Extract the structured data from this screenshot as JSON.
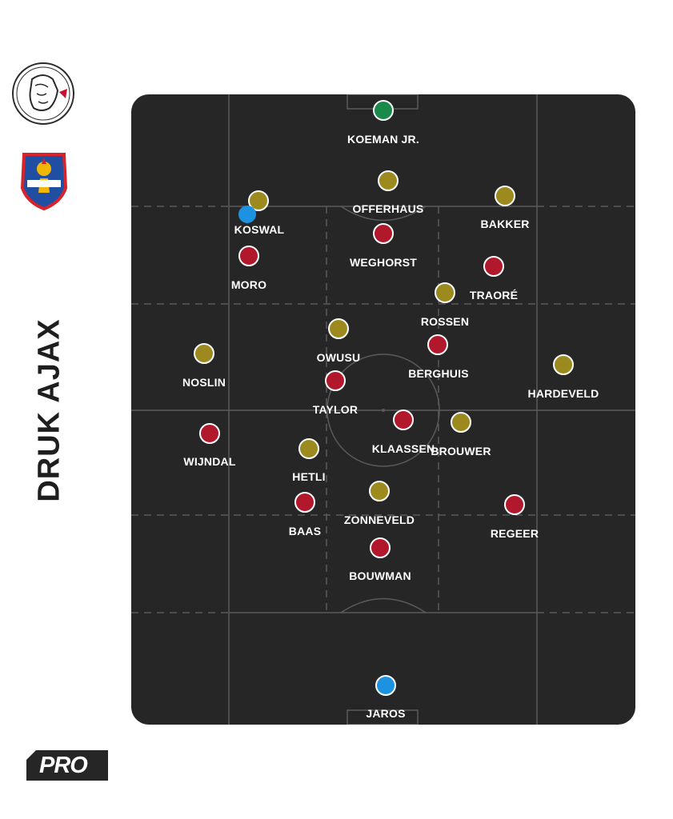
{
  "title": "DRUK AJAX",
  "badge": "PRO",
  "colors": {
    "pitch": "#262626",
    "lines": "#5a5a5a",
    "ajax": "#b2182b",
    "telstar": "#9d8a1e",
    "goalkeeper": "#1a8a4a",
    "highlight": "#1c92e0"
  },
  "logos": {
    "team_a": "ajax-logo",
    "team_b": "telstar-logo"
  },
  "players": [
    {
      "name": "KOEMAN JR.",
      "team": "goalkeeper"
    },
    {
      "name": "OFFERHAUS",
      "team": "telstar"
    },
    {
      "name": "BAKKER",
      "team": "telstar"
    },
    {
      "name": "KOSWAL",
      "team": "telstar"
    },
    {
      "name": "WEGHORST",
      "team": "ajax"
    },
    {
      "name": "MORO",
      "team": "ajax"
    },
    {
      "name": "TRAORÉ",
      "team": "ajax"
    },
    {
      "name": "ROSSEN",
      "team": "telstar"
    },
    {
      "name": "OWUSU",
      "team": "telstar"
    },
    {
      "name": "NOSLIN",
      "team": "telstar"
    },
    {
      "name": "BERGHUIS",
      "team": "ajax"
    },
    {
      "name": "HARDEVELD",
      "team": "telstar"
    },
    {
      "name": "TAYLOR",
      "team": "ajax"
    },
    {
      "name": "WIJNDAL",
      "team": "ajax"
    },
    {
      "name": "KLAASSEN",
      "team": "ajax"
    },
    {
      "name": "BROUWER",
      "team": "telstar"
    },
    {
      "name": "HETLI",
      "team": "telstar"
    },
    {
      "name": "ZONNEVELD",
      "team": "telstar"
    },
    {
      "name": "BAAS",
      "team": "ajax"
    },
    {
      "name": "REGEER",
      "team": "ajax"
    },
    {
      "name": "BOUWMAN",
      "team": "ajax"
    },
    {
      "name": "JAROS",
      "team": "highlight"
    }
  ]
}
